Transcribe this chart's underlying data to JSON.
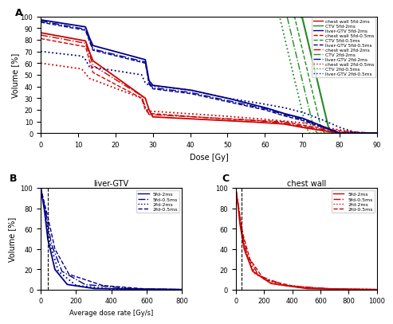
{
  "panel_A": {
    "xlabel": "Dose [Gy]",
    "ylabel": "Volume [%]",
    "xlim": [
      0,
      90
    ],
    "ylim": [
      0,
      100
    ],
    "xticks": [
      0,
      10,
      20,
      30,
      40,
      50,
      60,
      70,
      80,
      90
    ],
    "yticks": [
      0,
      10,
      20,
      30,
      40,
      50,
      60,
      70,
      80,
      90,
      100
    ],
    "legend_entries": [
      "chest wall 5fd-2ms",
      "CTV 5fd-2ms",
      "liver-GTV 5fd-2ms",
      "chest wall 5fd-0.5ms",
      "CTV 5fd-0.5ms",
      "liver-GTV 5fd-0.5ms",
      "chest wall 2fd-2ms",
      "CTV 2fd-2ms",
      "liver-GTV 2fd-2ms",
      "chest wall 2fd-0.5ms",
      "CTV 2fd-0.5ms",
      "liver-GTV 2fd-0.5ms"
    ]
  },
  "panel_B": {
    "title": "liver-GTV",
    "xlabel": "Average dose rate [Gy/s]",
    "ylabel": "Volume [%]",
    "xlim": [
      0,
      800
    ],
    "ylim": [
      0,
      100
    ],
    "xticks": [
      0,
      200,
      400,
      600,
      800
    ],
    "yticks": [
      0,
      20,
      40,
      60,
      80,
      100
    ],
    "vline": 40,
    "legend_entries": [
      "5fd-2ms",
      "5fd-0.5ms",
      "2fd-2ms",
      "2fd-0.5ms"
    ]
  },
  "panel_C": {
    "title": "chest wall",
    "xlabel": "",
    "ylabel": "",
    "xlim": [
      0,
      1000
    ],
    "ylim": [
      0,
      100
    ],
    "xticks": [
      0,
      200,
      400,
      600,
      800,
      1000
    ],
    "yticks": [
      0,
      20,
      40,
      60,
      80,
      100
    ],
    "vline": 40,
    "legend_entries": [
      "5fd-2ms",
      "5fd-0.5ms",
      "2fd-2ms",
      "2fd-0.5ms"
    ]
  },
  "red": "#cc0000",
  "green": "#228B22",
  "blue": "#00008B",
  "lw_solid": 1.3,
  "lw_thin": 1.0
}
